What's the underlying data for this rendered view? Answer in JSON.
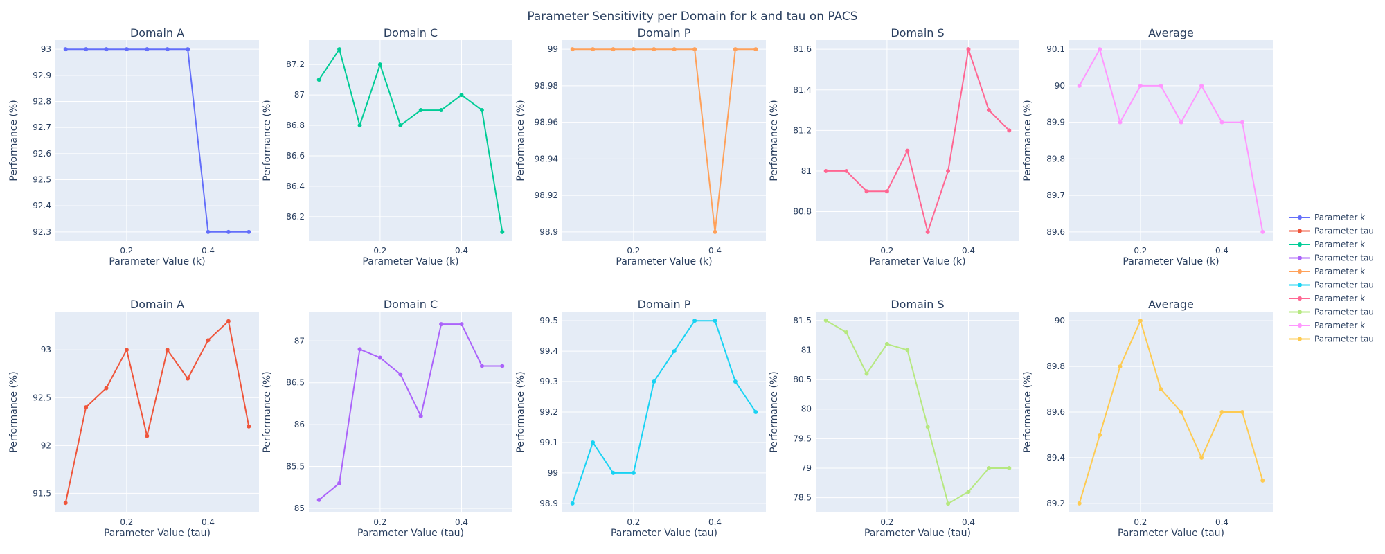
{
  "figure_title": "Parameter Sensitivity per Domain for k and tau on PACS",
  "chart_data": [
    {
      "type": "line",
      "title": "Domain A",
      "xlabel": "Parameter Value (k)",
      "ylabel": "Performance (%)",
      "series_name": "Parameter k",
      "color": "#636efa",
      "x": [
        0.05,
        0.1,
        0.15,
        0.2,
        0.25,
        0.3,
        0.35,
        0.4,
        0.45,
        0.5
      ],
      "values": [
        93,
        93,
        93,
        93,
        93,
        93,
        93,
        92.3,
        92.3,
        92.3
      ],
      "xlim": [
        0.025,
        0.525
      ],
      "xticks": [
        0.2,
        0.4
      ],
      "xtick_labels": [
        "0.2",
        "0.4"
      ],
      "ylim": [
        92.265,
        93.035
      ],
      "yticks": [
        92.3,
        92.4,
        92.5,
        92.6,
        92.7,
        92.8,
        92.9,
        93
      ],
      "ytick_labels": [
        "92.3",
        "92.4",
        "92.5",
        "92.6",
        "92.7",
        "92.8",
        "92.9",
        "93"
      ]
    },
    {
      "type": "line",
      "title": "Domain C",
      "xlabel": "Parameter Value (k)",
      "ylabel": "Performance (%)",
      "series_name": "Parameter k",
      "color": "#00cc96",
      "x": [
        0.05,
        0.1,
        0.15,
        0.2,
        0.25,
        0.3,
        0.35,
        0.4,
        0.45,
        0.5
      ],
      "values": [
        87.1,
        87.3,
        86.8,
        87.2,
        86.8,
        86.9,
        86.9,
        87.0,
        86.9,
        86.1
      ],
      "xlim": [
        0.025,
        0.525
      ],
      "xticks": [
        0.2,
        0.4
      ],
      "xtick_labels": [
        "0.2",
        "0.4"
      ],
      "ylim": [
        86.04,
        87.36
      ],
      "yticks": [
        86.2,
        86.4,
        86.6,
        86.8,
        87,
        87.2
      ],
      "ytick_labels": [
        "86.2",
        "86.4",
        "86.6",
        "86.8",
        "87",
        "87.2"
      ]
    },
    {
      "type": "line",
      "title": "Domain P",
      "xlabel": "Parameter Value (k)",
      "ylabel": "Performance (%)",
      "series_name": "Parameter k",
      "color": "#ffa15a",
      "x": [
        0.05,
        0.1,
        0.15,
        0.2,
        0.25,
        0.3,
        0.35,
        0.4,
        0.45,
        0.5
      ],
      "values": [
        99,
        99,
        99,
        99,
        99,
        99,
        99,
        98.9,
        99,
        99
      ],
      "xlim": [
        0.025,
        0.525
      ],
      "xticks": [
        0.2,
        0.4
      ],
      "xtick_labels": [
        "0.2",
        "0.4"
      ],
      "ylim": [
        98.895,
        99.005
      ],
      "yticks": [
        98.9,
        98.92,
        98.94,
        98.96,
        98.98,
        99
      ],
      "ytick_labels": [
        "98.9",
        "98.92",
        "98.94",
        "98.96",
        "98.98",
        "99"
      ]
    },
    {
      "type": "line",
      "title": "Domain S",
      "xlabel": "Parameter Value (k)",
      "ylabel": "Performance (%)",
      "series_name": "Parameter k",
      "color": "#ef553b",
      "line_color": "#ff6692",
      "x": [
        0.05,
        0.1,
        0.15,
        0.2,
        0.25,
        0.3,
        0.35,
        0.4,
        0.45,
        0.5
      ],
      "values": [
        81,
        81,
        80.9,
        80.9,
        81.1,
        80.7,
        81,
        81.6,
        81.3,
        81.2
      ],
      "xlim": [
        0.025,
        0.525
      ],
      "xticks": [
        0.2,
        0.4
      ],
      "xtick_labels": [
        "0.2",
        "0.4"
      ],
      "ylim": [
        80.655,
        81.645
      ],
      "yticks": [
        80.8,
        81,
        81.2,
        81.4,
        81.6
      ],
      "ytick_labels": [
        "80.8",
        "81",
        "81.2",
        "81.4",
        "81.6"
      ]
    },
    {
      "type": "line",
      "title": "Average",
      "xlabel": "Parameter Value (k)",
      "ylabel": "Performance (%)",
      "series_name": "Parameter k",
      "color": "#ff97ff",
      "x": [
        0.05,
        0.1,
        0.15,
        0.2,
        0.25,
        0.3,
        0.35,
        0.4,
        0.45,
        0.5
      ],
      "values": [
        90,
        90.1,
        89.9,
        90,
        90,
        89.9,
        90,
        89.9,
        89.9,
        89.6
      ],
      "xlim": [
        0.025,
        0.525
      ],
      "xticks": [
        0.2,
        0.4
      ],
      "xtick_labels": [
        "0.2",
        "0.4"
      ],
      "ylim": [
        89.575,
        90.125
      ],
      "yticks": [
        89.6,
        89.7,
        89.8,
        89.9,
        90,
        90.1
      ],
      "ytick_labels": [
        "89.6",
        "89.7",
        "89.8",
        "89.9",
        "90",
        "90.1"
      ]
    },
    {
      "type": "line",
      "title": "Domain A",
      "xlabel": "Parameter Value (tau)",
      "ylabel": "Performance (%)",
      "series_name": "Parameter tau",
      "color": "#ef553b",
      "x": [
        0.05,
        0.1,
        0.15,
        0.2,
        0.25,
        0.3,
        0.35,
        0.4,
        0.45,
        0.5
      ],
      "values": [
        91.4,
        92.4,
        92.6,
        93,
        92.1,
        93,
        92.7,
        93.1,
        93.3,
        92.2
      ],
      "xlim": [
        0.025,
        0.525
      ],
      "xticks": [
        0.2,
        0.4
      ],
      "xtick_labels": [
        "0.2",
        "0.4"
      ],
      "ylim": [
        91.3,
        93.4
      ],
      "yticks": [
        91.5,
        92,
        92.5,
        93
      ],
      "ytick_labels": [
        "91.5",
        "92",
        "92.5",
        "93"
      ]
    },
    {
      "type": "line",
      "title": "Domain C",
      "xlabel": "Parameter Value (tau)",
      "ylabel": "Performance (%)",
      "series_name": "Parameter tau",
      "color": "#ab63fa",
      "x": [
        0.05,
        0.1,
        0.15,
        0.2,
        0.25,
        0.3,
        0.35,
        0.4,
        0.45,
        0.5
      ],
      "values": [
        85.1,
        85.3,
        86.9,
        86.8,
        86.6,
        86.1,
        87.2,
        87.2,
        86.7,
        86.7
      ],
      "xlim": [
        0.025,
        0.525
      ],
      "xticks": [
        0.2,
        0.4
      ],
      "xtick_labels": [
        "0.2",
        "0.4"
      ],
      "ylim": [
        84.95,
        87.35
      ],
      "yticks": [
        85,
        85.5,
        86,
        86.5,
        87
      ],
      "ytick_labels": [
        "85",
        "85.5",
        "86",
        "86.5",
        "87"
      ]
    },
    {
      "type": "line",
      "title": "Domain P",
      "xlabel": "Parameter Value (tau)",
      "ylabel": "Performance (%)",
      "series_name": "Parameter tau",
      "color": "#19d3f3",
      "x": [
        0.05,
        0.1,
        0.15,
        0.2,
        0.25,
        0.3,
        0.35,
        0.4,
        0.45,
        0.5
      ],
      "values": [
        98.9,
        99.1,
        99,
        99,
        99.3,
        99.4,
        99.5,
        99.5,
        99.3,
        99.2
      ],
      "xlim": [
        0.025,
        0.525
      ],
      "xticks": [
        0.2,
        0.4
      ],
      "xtick_labels": [
        "0.2",
        "0.4"
      ],
      "ylim": [
        98.87,
        99.53
      ],
      "yticks": [
        98.9,
        99,
        99.1,
        99.2,
        99.3,
        99.4,
        99.5
      ],
      "ytick_labels": [
        "98.9",
        "99",
        "99.1",
        "99.2",
        "99.3",
        "99.4",
        "99.5"
      ]
    },
    {
      "type": "line",
      "title": "Domain S",
      "xlabel": "Parameter Value (tau)",
      "ylabel": "Performance (%)",
      "series_name": "Parameter tau",
      "color": "#b6e880",
      "x": [
        0.05,
        0.1,
        0.15,
        0.2,
        0.25,
        0.3,
        0.35,
        0.4,
        0.45,
        0.5
      ],
      "values": [
        81.5,
        81.3,
        80.6,
        81.1,
        81,
        79.7,
        78.4,
        78.6,
        79,
        79
      ],
      "xlim": [
        0.025,
        0.525
      ],
      "xticks": [
        0.2,
        0.4
      ],
      "xtick_labels": [
        "0.2",
        "0.4"
      ],
      "ylim": [
        78.25,
        81.65
      ],
      "yticks": [
        78.5,
        79,
        79.5,
        80,
        80.5,
        81,
        81.5
      ],
      "ytick_labels": [
        "78.5",
        "79",
        "79.5",
        "80",
        "80.5",
        "81",
        "81.5"
      ]
    },
    {
      "type": "line",
      "title": "Average",
      "xlabel": "Parameter Value (tau)",
      "ylabel": "Performance (%)",
      "series_name": "Parameter tau",
      "color": "#fecb52",
      "x": [
        0.05,
        0.1,
        0.15,
        0.2,
        0.25,
        0.3,
        0.35,
        0.4,
        0.45,
        0.5
      ],
      "values": [
        89.2,
        89.5,
        89.8,
        90,
        89.7,
        89.6,
        89.4,
        89.6,
        89.6,
        89.3
      ],
      "xlim": [
        0.025,
        0.525
      ],
      "xticks": [
        0.2,
        0.4
      ],
      "xtick_labels": [
        "0.2",
        "0.4"
      ],
      "ylim": [
        89.16,
        90.04
      ],
      "yticks": [
        89.2,
        89.4,
        89.6,
        89.8,
        90
      ],
      "ytick_labels": [
        "89.2",
        "89.4",
        "89.6",
        "89.8",
        "90"
      ]
    }
  ],
  "legend": {
    "placement": "right",
    "entries": [
      {
        "label": "Parameter k",
        "color": "#636efa"
      },
      {
        "label": "Parameter tau",
        "color": "#ef553b"
      },
      {
        "label": "Parameter k",
        "color": "#00cc96"
      },
      {
        "label": "Parameter tau",
        "color": "#ab63fa"
      },
      {
        "label": "Parameter k",
        "color": "#ffa15a"
      },
      {
        "label": "Parameter tau",
        "color": "#19d3f3"
      },
      {
        "label": "Parameter k",
        "color": "#ff6692"
      },
      {
        "label": "Parameter tau",
        "color": "#b6e880"
      },
      {
        "label": "Parameter k",
        "color": "#ff97ff"
      },
      {
        "label": "Parameter tau",
        "color": "#fecb52"
      }
    ]
  }
}
